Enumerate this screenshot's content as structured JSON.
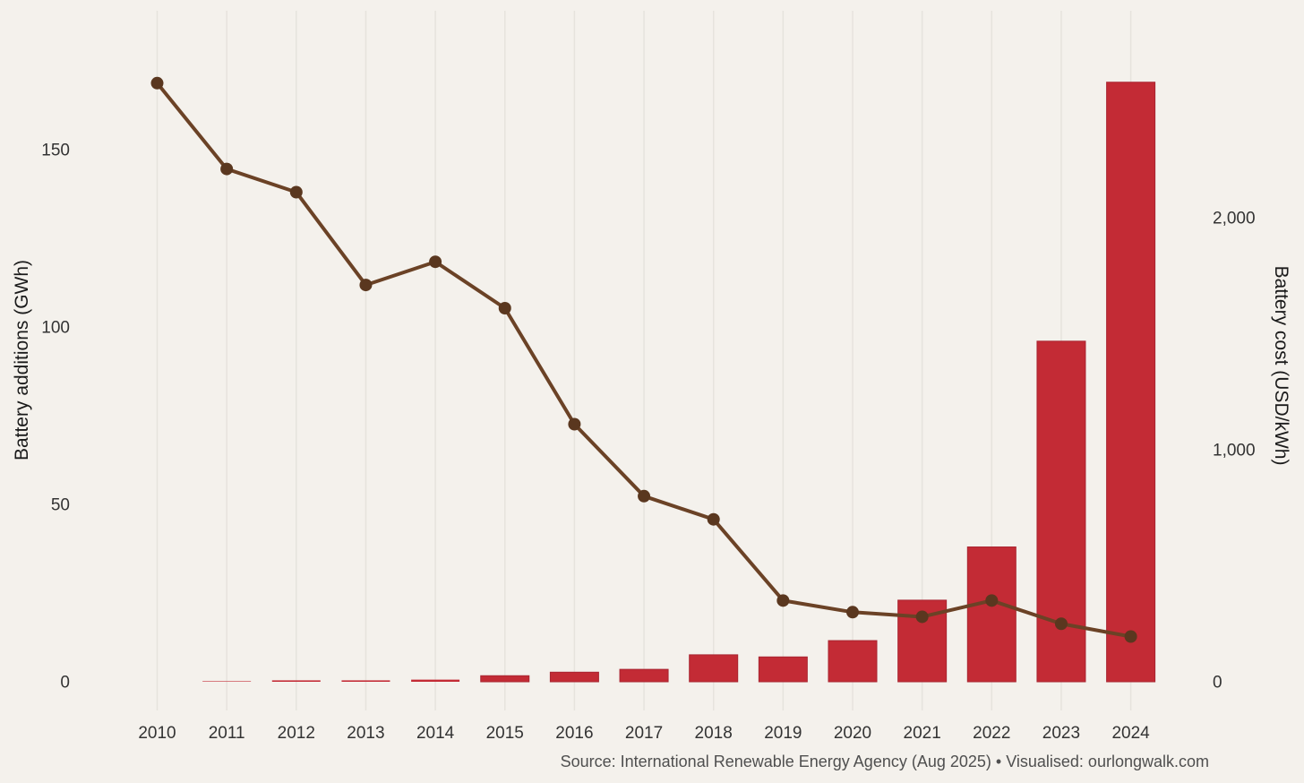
{
  "chart_data": {
    "type": "bar",
    "subtype": "bar+line dual-axis combo",
    "title": "",
    "categories": [
      "2010",
      "2011",
      "2012",
      "2013",
      "2014",
      "2015",
      "2016",
      "2017",
      "2018",
      "2019",
      "2020",
      "2021",
      "2022",
      "2023",
      "2024"
    ],
    "series": [
      {
        "name": "Battery additions (GWh)",
        "chart_type": "bar",
        "axis": "left",
        "values": [
          0,
          0.15,
          0.4,
          0.4,
          0.6,
          1.7,
          2.7,
          3.5,
          7.6,
          7.0,
          11.6,
          23,
          38,
          96,
          169
        ],
        "color": "#c32b35",
        "stroke_color": "#a82531"
      },
      {
        "name": "Battery cost (USD/kWh)",
        "chart_type": "line",
        "axis": "right",
        "values": [
          2580,
          2210,
          2110,
          1710,
          1810,
          1610,
          1110,
          800,
          700,
          350,
          300,
          280,
          350,
          250,
          195
        ],
        "color": "#6b4226",
        "dot_color": "#5a371f"
      }
    ],
    "left_axis": {
      "label": "Battery additions (GWh)",
      "tick_labels": [
        "0",
        "50",
        "100",
        "150"
      ],
      "tick_values": [
        0,
        50,
        100,
        150
      ],
      "range": [
        0,
        190
      ]
    },
    "right_axis": {
      "label": "Battery cost (USD/kWh)",
      "tick_labels": [
        "0",
        "1,000",
        "2,000"
      ],
      "tick_values": [
        0,
        1000,
        2000
      ],
      "range": [
        0,
        2900
      ]
    },
    "x_axis": {
      "tick_labels": [
        "2010",
        "2011",
        "2012",
        "2013",
        "2014",
        "2015",
        "2016",
        "2017",
        "2018",
        "2019",
        "2020",
        "2021",
        "2022",
        "2023",
        "2024"
      ]
    },
    "source": "Source: International Renewable Energy Agency (Aug 2025) • Visualised: ourlongwalk.com",
    "legend": "none",
    "grid": "vertical gridlines only",
    "background_color": "#f4f1ec",
    "gridline_color": "#e6e3dd",
    "tick_text_color": "#333333",
    "axis_title_color": "#1a1a1a",
    "source_text_color": "#4f4f4f"
  }
}
